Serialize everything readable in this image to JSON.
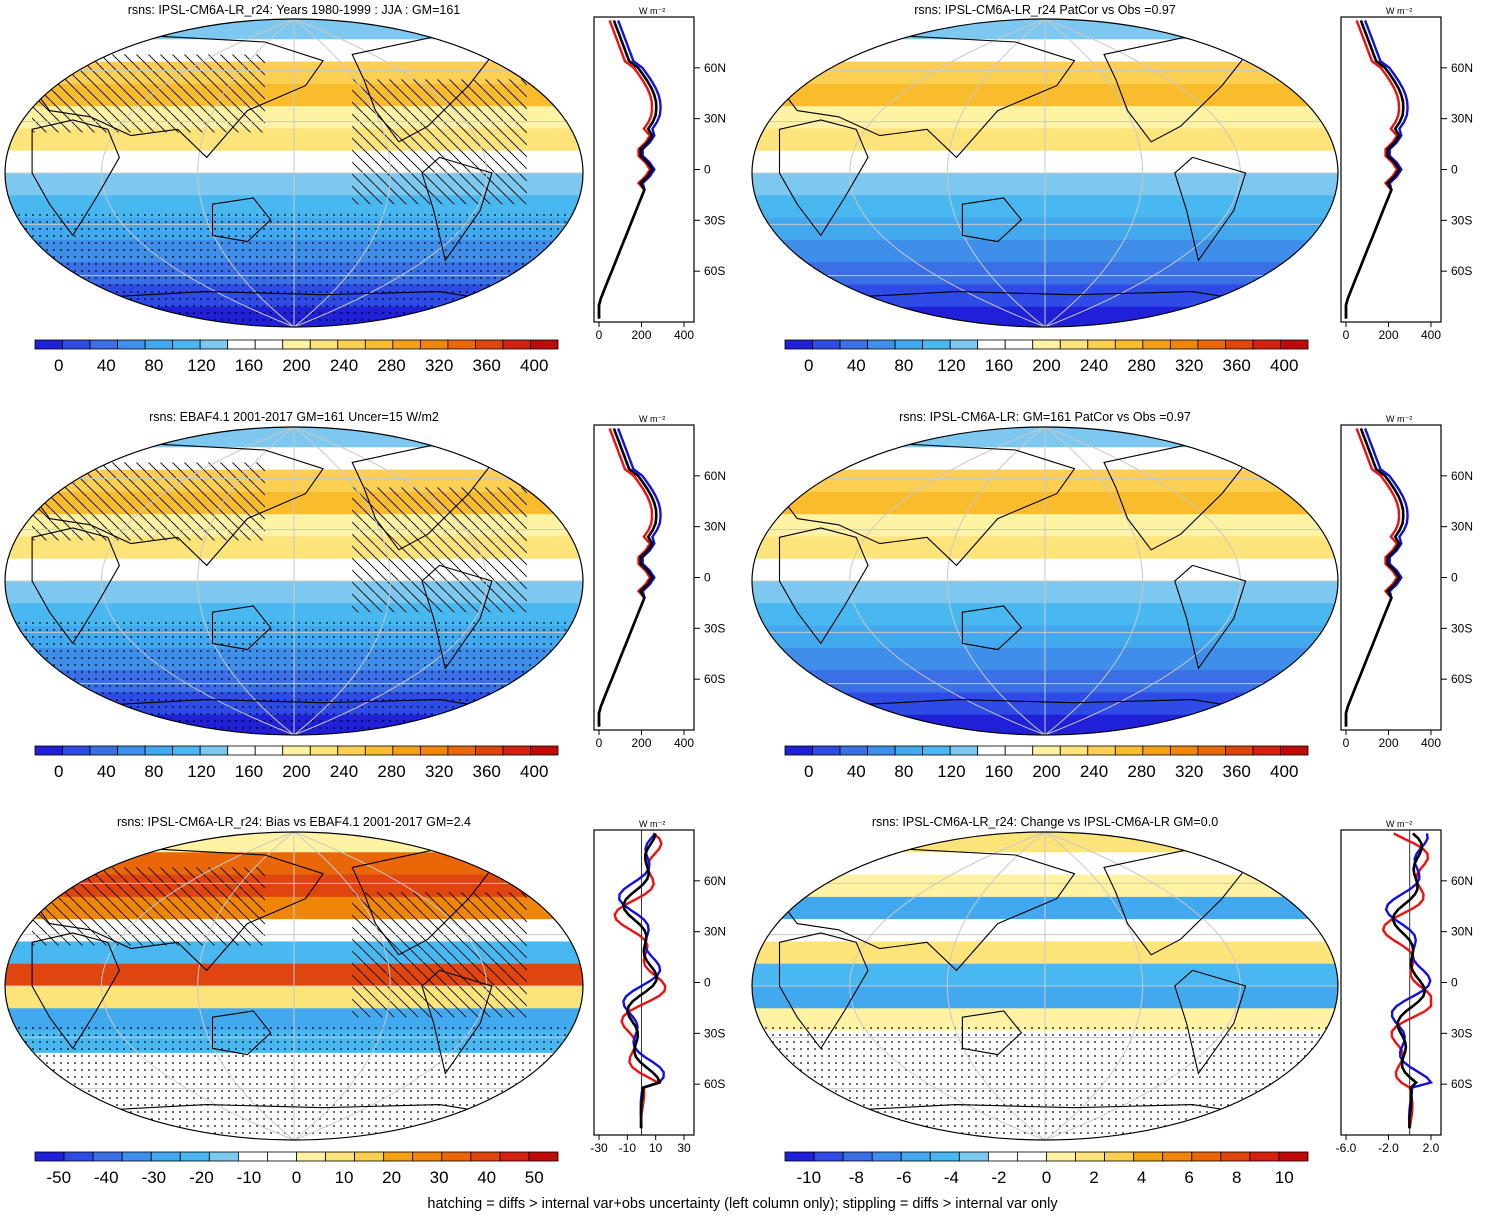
{
  "footer": "hatching = diffs > internal var+obs uncertainty (left column only); stippling = diffs > internal var only",
  "colors": {
    "sequential": [
      "#2020d8",
      "#2e4be6",
      "#3a6fe6",
      "#3f8fea",
      "#43a9ee",
      "#4ab8f0",
      "#7cc8f0",
      "#ffffff",
      "#ffffff",
      "#fff3a3",
      "#fde47a",
      "#fbd052",
      "#f8bc2d",
      "#f4a215",
      "#ef8608",
      "#e96708",
      "#e04510",
      "#d42010",
      "#c00a0a"
    ],
    "diverging": [
      "#2020d8",
      "#2e4be6",
      "#3a6fe6",
      "#3f8fea",
      "#43a9ee",
      "#4ab8f0",
      "#7cc8f0",
      "#ffffff",
      "#ffffff",
      "#fff3a3",
      "#fde47a",
      "#fbd052",
      "#f4a215",
      "#ef8608",
      "#e96708",
      "#e04510",
      "#d42010",
      "#c00a0a"
    ],
    "line_blue": "#1010e0",
    "line_red": "#ee1010",
    "line_black": "#000000"
  },
  "panels": [
    {
      "title": "rsns: IPSL-CM6A-LR_r24: Years 1980-1999 : JJA : GM=161",
      "cbar_labels": [
        "0",
        "40",
        "80",
        "120",
        "160",
        "200",
        "240",
        "280",
        "320",
        "360",
        "400"
      ],
      "palette": "sequential",
      "zonal_axis_labels": [
        "0",
        "200",
        "400"
      ],
      "zonal_unit": "W m⁻²",
      "lat_labels": [
        "60N",
        "30N",
        "0",
        "30S",
        "60S"
      ]
    },
    {
      "title": "rsns: IPSL-CM6A-LR_r24 PatCor vs Obs =0.97",
      "cbar_labels": [
        "0",
        "40",
        "80",
        "120",
        "160",
        "200",
        "240",
        "280",
        "320",
        "360",
        "400"
      ],
      "palette": "sequential",
      "zonal_axis_labels": [
        "0",
        "200",
        "400"
      ],
      "zonal_unit": "W m⁻²",
      "lat_labels": [
        "60N",
        "30N",
        "0",
        "30S",
        "60S"
      ]
    },
    {
      "title": "rsns: EBAF4.1 2001-2017 GM=161 Uncer=15 W/m2",
      "cbar_labels": [
        "0",
        "40",
        "80",
        "120",
        "160",
        "200",
        "240",
        "280",
        "320",
        "360",
        "400"
      ],
      "palette": "sequential",
      "zonal_axis_labels": [
        "0",
        "200",
        "400"
      ],
      "zonal_unit": "W m⁻²",
      "lat_labels": [
        "60N",
        "30N",
        "0",
        "30S",
        "60S"
      ]
    },
    {
      "title": "rsns: IPSL-CM6A-LR: GM=161 PatCor vs Obs =0.97",
      "cbar_labels": [
        "0",
        "40",
        "80",
        "120",
        "160",
        "200",
        "240",
        "280",
        "320",
        "360",
        "400"
      ],
      "palette": "sequential",
      "zonal_axis_labels": [
        "0",
        "200",
        "400"
      ],
      "zonal_unit": "W m⁻²",
      "lat_labels": [
        "60N",
        "30N",
        "0",
        "30S",
        "60S"
      ]
    },
    {
      "title": "rsns: IPSL-CM6A-LR_r24: Bias vs EBAF4.1 2001-2017 GM=2.4",
      "cbar_labels": [
        "-50",
        "-40",
        "-30",
        "-20",
        "-10",
        "0",
        "10",
        "20",
        "30",
        "40",
        "50"
      ],
      "palette": "diverging",
      "zonal_axis_labels": [
        "-30",
        "-10",
        "10",
        "30"
      ],
      "zonal_unit": "W m⁻²",
      "lat_labels": [
        "60N",
        "30N",
        "0",
        "30S",
        "60S"
      ]
    },
    {
      "title": "rsns: IPSL-CM6A-LR_r24: Change vs IPSL-CM6A-LR GM=0.0",
      "cbar_labels": [
        "-10",
        "-8",
        "-6",
        "-4",
        "-2",
        "0",
        "2",
        "4",
        "6",
        "8",
        "10"
      ],
      "palette": "diverging",
      "zonal_axis_labels": [
        "-6.0",
        "-2.0",
        "2.0"
      ],
      "zonal_unit": "W m⁻²",
      "lat_labels": [
        "60N",
        "30N",
        "0",
        "30S",
        "60S"
      ]
    }
  ]
}
